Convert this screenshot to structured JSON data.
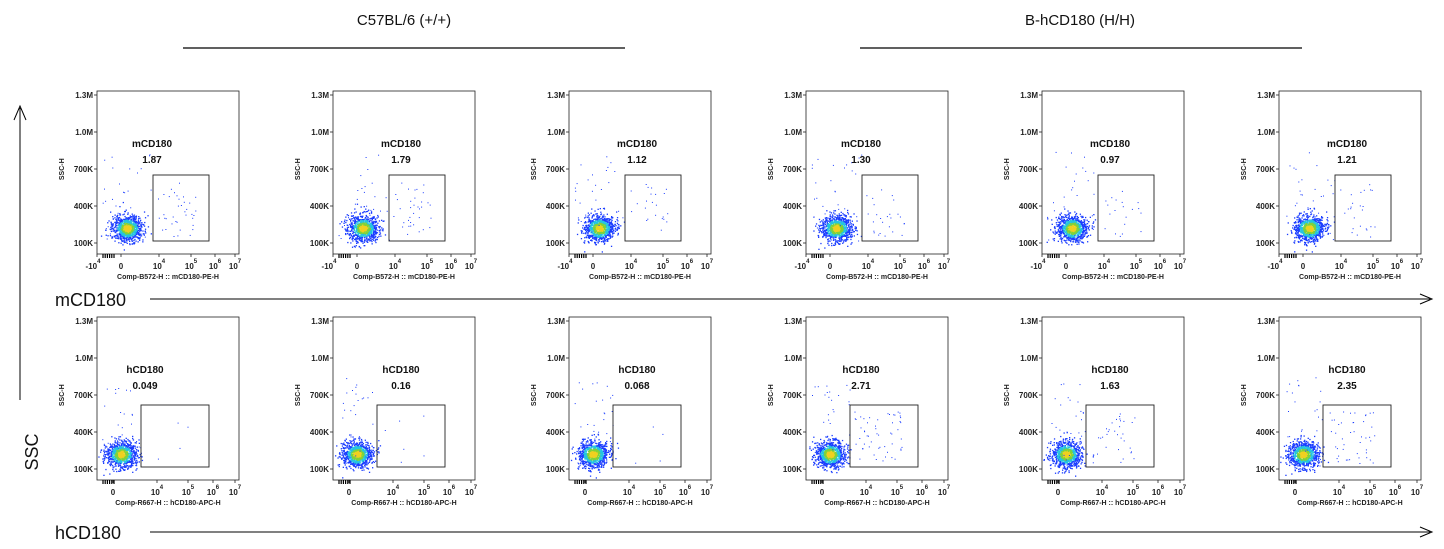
{
  "groups": [
    {
      "label": "C57BL/6 (+/+)"
    },
    {
      "label": "B-hCD180 (H/H)"
    }
  ],
  "axis_labels": {
    "y": "SSC",
    "row1_x": "mCD180",
    "row2_x": "hCD180"
  },
  "chart_data": [
    {
      "type": "scatter",
      "panel": "row1-col1",
      "group": "C57BL/6 (+/+)",
      "gate_label": "mCD180",
      "gate_value": "1.87",
      "xlabel": "Comp-B572-H :: mCD180-PE-H",
      "ylabel": "SSC-H",
      "yticks": [
        "100K",
        "400K",
        "700K",
        "1.0M",
        "1.3M"
      ]
    },
    {
      "type": "scatter",
      "panel": "row1-col2",
      "group": "C57BL/6 (+/+)",
      "gate_label": "mCD180",
      "gate_value": "1.79",
      "xlabel": "Comp-B572-H :: mCD180-PE-H",
      "ylabel": "SSC-H",
      "yticks": [
        "100K",
        "400K",
        "700K",
        "1.0M",
        "1.3M"
      ]
    },
    {
      "type": "scatter",
      "panel": "row1-col3",
      "group": "C57BL/6 (+/+)",
      "gate_label": "mCD180",
      "gate_value": "1.12",
      "xlabel": "Comp-B572-H :: mCD180-PE-H",
      "ylabel": "SSC-H",
      "yticks": [
        "100K",
        "400K",
        "700K",
        "1.0M",
        "1.3M"
      ]
    },
    {
      "type": "scatter",
      "panel": "row1-col4",
      "group": "B-hCD180 (H/H)",
      "gate_label": "mCD180",
      "gate_value": "1.30",
      "xlabel": "Comp-B572-H :: mCD180-PE-H",
      "ylabel": "SSC-H",
      "yticks": [
        "100K",
        "400K",
        "700K",
        "1.0M",
        "1.3M"
      ]
    },
    {
      "type": "scatter",
      "panel": "row1-col5",
      "group": "B-hCD180 (H/H)",
      "gate_label": "mCD180",
      "gate_value": "0.97",
      "xlabel": "Comp-B572-H :: mCD180-PE-H",
      "ylabel": "SSC-H",
      "yticks": [
        "100K",
        "400K",
        "700K",
        "1.0M",
        "1.3M"
      ]
    },
    {
      "type": "scatter",
      "panel": "row1-col6",
      "group": "B-hCD180 (H/H)",
      "gate_label": "mCD180",
      "gate_value": "1.21",
      "xlabel": "Comp-B572-H :: mCD180-PE-H",
      "ylabel": "SSC-H",
      "yticks": [
        "100K",
        "400K",
        "700K",
        "1.0M",
        "1.3M"
      ]
    },
    {
      "type": "scatter",
      "panel": "row2-col1",
      "group": "C57BL/6 (+/+)",
      "gate_label": "hCD180",
      "gate_value": "0.049",
      "xlabel": "Comp-R667-H :: hCD180-APC-H",
      "ylabel": "SSC-H",
      "yticks": [
        "100K",
        "400K",
        "700K",
        "1.0M",
        "1.3M"
      ]
    },
    {
      "type": "scatter",
      "panel": "row2-col2",
      "group": "C57BL/6 (+/+)",
      "gate_label": "hCD180",
      "gate_value": "0.16",
      "xlabel": "Comp-R667-H :: hCD180-APC-H",
      "ylabel": "SSC-H",
      "yticks": [
        "100K",
        "400K",
        "700K",
        "1.0M",
        "1.3M"
      ]
    },
    {
      "type": "scatter",
      "panel": "row2-col3",
      "group": "C57BL/6 (+/+)",
      "gate_label": "hCD180",
      "gate_value": "0.068",
      "xlabel": "Comp-R667-H :: hCD180-APC-H",
      "ylabel": "SSC-H",
      "yticks": [
        "100K",
        "400K",
        "700K",
        "1.0M",
        "1.3M"
      ]
    },
    {
      "type": "scatter",
      "panel": "row2-col4",
      "group": "B-hCD180 (H/H)",
      "gate_label": "hCD180",
      "gate_value": "2.71",
      "xlabel": "Comp-R667-H :: hCD180-APC-H",
      "ylabel": "SSC-H",
      "yticks": [
        "100K",
        "400K",
        "700K",
        "1.0M",
        "1.3M"
      ]
    },
    {
      "type": "scatter",
      "panel": "row2-col5",
      "group": "B-hCD180 (H/H)",
      "gate_label": "hCD180",
      "gate_value": "1.63",
      "xlabel": "Comp-R667-H :: hCD180-APC-H",
      "ylabel": "SSC-H",
      "yticks": [
        "100K",
        "400K",
        "700K",
        "1.0M",
        "1.3M"
      ]
    },
    {
      "type": "scatter",
      "panel": "row2-col6",
      "group": "B-hCD180 (H/H)",
      "gate_label": "hCD180",
      "gate_value": "2.35",
      "xlabel": "Comp-R667-H :: hCD180-APC-H",
      "ylabel": "SSC-H",
      "yticks": [
        "100K",
        "400K",
        "700K",
        "1.0M",
        "1.3M"
      ]
    }
  ],
  "x_ticks_row1": [
    {
      "base": "-10",
      "exp": "4"
    },
    {
      "base": "0",
      "exp": ""
    },
    {
      "base": "10",
      "exp": "4"
    },
    {
      "base": "10",
      "exp": "5"
    },
    {
      "base": "10",
      "exp": "6"
    },
    {
      "base": "10",
      "exp": "7"
    }
  ],
  "x_ticks_row2": [
    {
      "base": "0",
      "exp": ""
    },
    {
      "base": "10",
      "exp": "4"
    },
    {
      "base": "10",
      "exp": "5"
    },
    {
      "base": "10",
      "exp": "6"
    },
    {
      "base": "10",
      "exp": "7"
    }
  ],
  "colors": {
    "density_low": "#1a3cff",
    "density_mid": "#25c4e0",
    "density_high": "#7fd23a",
    "density_peak": "#f0d020",
    "text": "#111111"
  }
}
